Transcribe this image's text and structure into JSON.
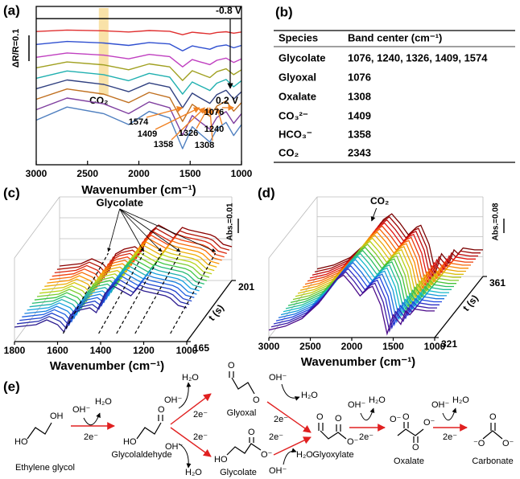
{
  "chart_data": [
    {
      "label": "(a)",
      "type": "line",
      "x": [
        3000,
        2700,
        2343,
        2100,
        1900,
        1700,
        1574,
        1480,
        1409,
        1358,
        1308,
        1240,
        1150,
        1076,
        1000
      ],
      "xlim": [
        3000,
        1000
      ],
      "xticks": [
        3000,
        2500,
        2000,
        1500,
        1000
      ],
      "xlabel": "Wavenumber (cm⁻¹)",
      "ylim": [
        0.35,
        1.0
      ],
      "scale_bar": "ΔR/R=0.1",
      "potential_start": "-0.8 V",
      "potential_end": "0.2 V",
      "band_marker": {
        "label": "CO₂",
        "x": 2343
      },
      "band_labels": [
        1574,
        1409,
        1358,
        1326,
        1308,
        1240,
        1076
      ],
      "series": [
        {
          "color": "#000000",
          "values": [
            0.95,
            0.95,
            0.95,
            0.95,
            0.95,
            0.95,
            0.95,
            0.95,
            0.95,
            0.95,
            0.95,
            0.95,
            0.95,
            0.95,
            0.95
          ]
        },
        {
          "color": "#e03030",
          "values": [
            0.897,
            0.903,
            0.9,
            0.895,
            0.901,
            0.898,
            0.884,
            0.894,
            0.891,
            0.889,
            0.887,
            0.893,
            0.896,
            0.89,
            0.895
          ]
        },
        {
          "color": "#3050d0",
          "values": [
            0.844,
            0.856,
            0.85,
            0.84,
            0.852,
            0.846,
            0.818,
            0.838,
            0.832,
            0.828,
            0.824,
            0.836,
            0.842,
            0.83,
            0.84
          ]
        },
        {
          "color": "#c040c0",
          "values": [
            0.791,
            0.809,
            0.8,
            0.785,
            0.803,
            0.794,
            0.752,
            0.782,
            0.773,
            0.767,
            0.761,
            0.779,
            0.788,
            0.77,
            0.785
          ]
        },
        {
          "color": "#a0a020",
          "values": [
            0.748,
            0.772,
            0.76,
            0.74,
            0.764,
            0.752,
            0.696,
            0.736,
            0.724,
            0.716,
            0.708,
            0.732,
            0.744,
            0.72,
            0.74
          ]
        },
        {
          "color": "#20b0b0",
          "values": [
            0.705,
            0.735,
            0.72,
            0.695,
            0.725,
            0.71,
            0.64,
            0.69,
            0.675,
            0.665,
            0.655,
            0.685,
            0.7,
            0.67,
            0.695
          ]
        },
        {
          "color": "#304080",
          "values": [
            0.662,
            0.698,
            0.68,
            0.65,
            0.686,
            0.668,
            0.584,
            0.644,
            0.626,
            0.614,
            0.602,
            0.638,
            0.656,
            0.62,
            0.65
          ]
        },
        {
          "color": "#c07020",
          "values": [
            0.619,
            0.661,
            0.64,
            0.605,
            0.647,
            0.626,
            0.528,
            0.598,
            0.577,
            0.563,
            0.549,
            0.591,
            0.612,
            0.57,
            0.605
          ]
        },
        {
          "color": "#8040a0",
          "values": [
            0.576,
            0.624,
            0.6,
            0.56,
            0.608,
            0.584,
            0.472,
            0.552,
            0.528,
            0.512,
            0.496,
            0.544,
            0.568,
            0.52,
            0.56
          ]
        },
        {
          "color": "#5080c0",
          "values": [
            0.533,
            0.587,
            0.56,
            0.515,
            0.569,
            0.542,
            0.416,
            0.506,
            0.479,
            0.461,
            0.443,
            0.497,
            0.524,
            0.47,
            0.515
          ]
        }
      ]
    },
    {
      "label": "(c)",
      "type": "waterfall",
      "x": [
        1800,
        1700,
        1650,
        1600,
        1570,
        1540,
        1500,
        1450,
        1420,
        1380,
        1340,
        1300,
        1260,
        1230,
        1200,
        1150,
        1100,
        1076,
        1040,
        1000
      ],
      "values": [
        0.002,
        0.004,
        0.008,
        0.004,
        -0.002,
        0.012,
        0.016,
        0.018,
        0.014,
        0.03,
        0.036,
        0.032,
        0.028,
        0.034,
        0.032,
        0.03,
        0.028,
        0.026,
        0.02,
        0.018
      ],
      "xlim": [
        1800,
        1000
      ],
      "xticks": [
        1800,
        1600,
        1400,
        1200,
        1000
      ],
      "xlabel": "Wavenumber (cm⁻¹)",
      "ylim": [
        -0.01,
        0.05
      ],
      "t": [
        165,
        167,
        169,
        171,
        173,
        175,
        177,
        179,
        181,
        183,
        185,
        187,
        189,
        191,
        193,
        195,
        197,
        199,
        201
      ],
      "tlim": [
        165,
        201
      ],
      "tticks": [
        165,
        201
      ],
      "tlabel": "t (s)",
      "scale_bar": "Abs.=0.01",
      "annotation": "Glycolate",
      "band_x": [
        1574,
        1409,
        1326,
        1240,
        1076
      ],
      "colormap": [
        "#2b1b8f",
        "#1d4fe0",
        "#16a7e0",
        "#2ec44a",
        "#c8d614",
        "#ff9a00",
        "#f03010",
        "#8b0000"
      ]
    },
    {
      "label": "(d)",
      "type": "waterfall",
      "x": [
        3000,
        2800,
        2600,
        2400,
        2200,
        2100,
        2000,
        1900,
        1800,
        1750,
        1650,
        1574,
        1500,
        1409,
        1350,
        1300,
        1240,
        1100,
        1000
      ],
      "values": [
        0.02,
        0.04,
        0.08,
        0.16,
        0.28,
        0.31,
        0.26,
        0.2,
        0.24,
        0.25,
        0.15,
        0.0,
        0.1,
        0.05,
        0.12,
        0.1,
        0.13,
        0.12,
        0.12
      ],
      "xlim": [
        3000,
        1000
      ],
      "xticks": [
        3000,
        2500,
        2000,
        1500,
        1000
      ],
      "xlabel": "Wavenumber (cm⁻¹)",
      "ylim": [
        -0.02,
        0.34
      ],
      "t": [
        321,
        323,
        325,
        327,
        329,
        331,
        333,
        335,
        337,
        339,
        341,
        343,
        345,
        347,
        349,
        351,
        353,
        355,
        357,
        359,
        361
      ],
      "tlim": [
        321,
        361
      ],
      "tticks": [
        321,
        361
      ],
      "tlabel": "t (s)",
      "scale_bar": "Abs.=0.08",
      "annotation": "CO₂",
      "annotation_x": 2343,
      "colormap": [
        "#4b0a8a",
        "#2040e0",
        "#10b8d8",
        "#30c040",
        "#d0d010",
        "#ff8000",
        "#e01010",
        "#7a0000"
      ]
    }
  ],
  "table": {
    "label": "(b)",
    "header": [
      "Species",
      "Band center (cm⁻¹)"
    ],
    "rows": [
      [
        "Glycolate",
        "1076, 1240, 1326, 1409, 1574"
      ],
      [
        "Glyoxal",
        "1076"
      ],
      [
        "Oxalate",
        "1308"
      ],
      [
        "CO₃²⁻",
        "1409"
      ],
      [
        "HCO₃⁻",
        "1358"
      ],
      [
        "CO₂",
        "2343"
      ]
    ]
  },
  "scheme": {
    "label": "(e)",
    "compounds": [
      "Ethylene glycol",
      "Glycolaldehyde",
      "Glyoxal",
      "Glycolate",
      "Glyoxylate",
      "Oxalate",
      "Carbonate"
    ],
    "hydroxide": "OH⁻",
    "water": "H₂O",
    "electrons": "2e⁻",
    "atoms": {
      "oh": "OH",
      "ho": "HO",
      "o": "O",
      "o_minus": "O⁻",
      "minus_o": "⁻O"
    }
  }
}
